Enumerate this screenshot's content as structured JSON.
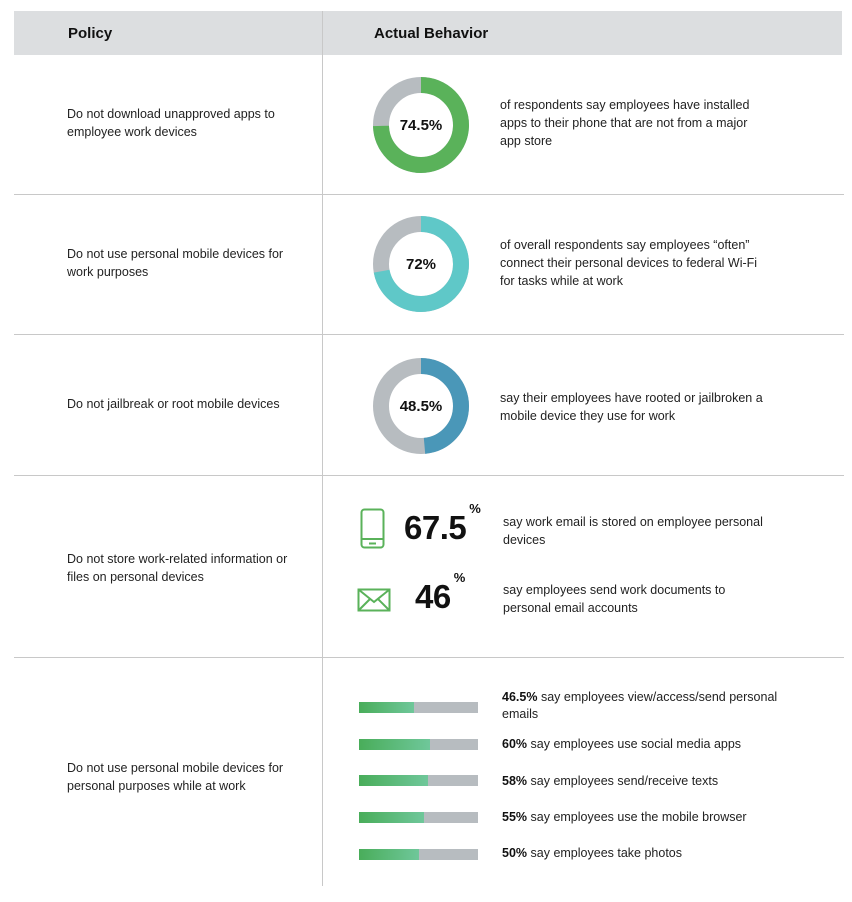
{
  "header": {
    "policy": "Policy",
    "actual": "Actual Behavior"
  },
  "colors": {
    "green": "#5ab25a",
    "teal": "#5fc8c8",
    "blue": "#4a97b8",
    "gray": "#b7bcc0",
    "icon_green": "#5ab25a"
  },
  "rows": [
    {
      "policy": "Do not download unapproved apps to employee work devices",
      "value": 74.5,
      "label": "74.5%",
      "color": "#5ab25a",
      "desc": "of respondents say employees have installed apps to their phone that are not from a major app store"
    },
    {
      "policy": "Do not use personal mobile devices for work purposes",
      "value": 72,
      "label": "72%",
      "color": "#5fc8c8",
      "desc": "of overall respondents say employees “often” connect their personal devices to federal Wi-Fi for tasks while at work"
    },
    {
      "policy": "Do not jailbreak or root mobile devices",
      "value": 48.5,
      "label": "48.5%",
      "color": "#4a97b8",
      "desc": "say their employees have rooted or jailbroken a mobile device they use for work"
    }
  ],
  "row4": {
    "policy": "Do not store work-related information or files on personal devices",
    "stats": [
      {
        "icon": "phone-icon",
        "value": "67.5",
        "unit": "%",
        "desc": "say work email is stored on employee personal devices"
      },
      {
        "icon": "envelope-icon",
        "value": "46",
        "unit": "%",
        "desc": "say employees send work documents to personal email accounts"
      }
    ]
  },
  "row5": {
    "policy": "Do not use personal mobile devices for personal purposes while at work",
    "bars": [
      {
        "value": 46.5,
        "pct": "46.5%",
        "text": "say employees view/access/send personal emails"
      },
      {
        "value": 60,
        "pct": "60%",
        "text": "say employees use social media apps"
      },
      {
        "value": 58,
        "pct": "58%",
        "text": "say employees send/receive texts"
      },
      {
        "value": 55,
        "pct": "55%",
        "text": "say employees use the mobile browser"
      },
      {
        "value": 50,
        "pct": "50%",
        "text": "say employees take photos"
      }
    ]
  },
  "chart_data": {
    "type": "table",
    "donuts": [
      {
        "category": "Do not download unapproved apps to employee work devices",
        "value": 74.5
      },
      {
        "category": "Do not use personal mobile devices for work purposes",
        "value": 72
      },
      {
        "category": "Do not jailbreak or root mobile devices",
        "value": 48.5
      }
    ],
    "stats": [
      {
        "category": "say work email is stored on employee personal devices",
        "value": 67.5
      },
      {
        "category": "say employees send work documents to personal email accounts",
        "value": 46
      }
    ],
    "bars": {
      "categories": [
        "say employees view/access/send personal emails",
        "say employees use social media apps",
        "say employees send/receive texts",
        "say employees use the mobile browser",
        "say employees take photos"
      ],
      "values": [
        46.5,
        60,
        58,
        55,
        50
      ],
      "ylim": [
        0,
        100
      ]
    }
  }
}
